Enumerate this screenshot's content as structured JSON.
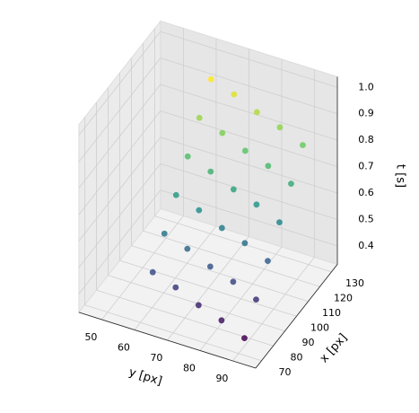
{
  "chart_data": {
    "type": "scatter3d",
    "colormap": "viridis",
    "xlabel": "x [px]",
    "ylabel": "y [px]",
    "zlabel": "t [s]",
    "x": [
      75,
      75,
      75,
      75,
      75,
      85,
      85,
      85,
      85,
      85,
      95,
      95,
      95,
      95,
      95,
      105,
      105,
      105,
      105,
      105,
      115,
      115,
      115,
      115,
      115,
      125,
      125,
      125,
      125,
      125
    ],
    "y": [
      62,
      69,
      76,
      83,
      90,
      62,
      69,
      76,
      83,
      90,
      62,
      69,
      76,
      83,
      90,
      62,
      69,
      76,
      83,
      90,
      62,
      69,
      76,
      83,
      90,
      62,
      69,
      76,
      83,
      90
    ],
    "z": [
      0.5,
      0.47,
      0.43,
      0.4,
      0.36,
      0.59,
      0.56,
      0.52,
      0.49,
      0.45,
      0.68,
      0.65,
      0.61,
      0.58,
      0.54,
      0.77,
      0.74,
      0.7,
      0.67,
      0.63,
      0.86,
      0.83,
      0.79,
      0.76,
      0.72,
      0.95,
      0.92,
      0.88,
      0.85,
      0.81
    ],
    "xlim": [
      65,
      135
    ],
    "ylim": [
      43,
      97
    ],
    "zlim": [
      0.33,
      1.04
    ],
    "xticks": [
      70,
      80,
      90,
      100,
      110,
      120,
      130
    ],
    "yticks": [
      50,
      60,
      70,
      80,
      90
    ],
    "zticks": [
      0.4,
      0.5,
      0.6,
      0.7,
      0.8,
      0.9,
      {
        "value": 1,
        "label": "1.0"
      }
    ],
    "grid": true
  }
}
